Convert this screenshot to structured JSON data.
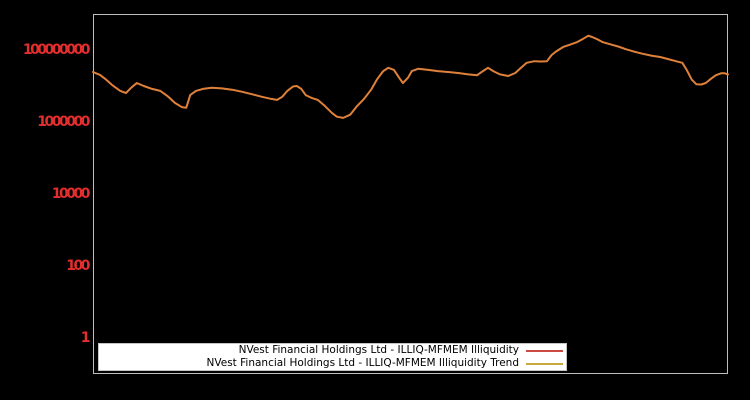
{
  "window": {
    "background_color": "#000000"
  },
  "axes": {
    "border_color": "#bebebe",
    "tick_label_color": "#e42d2d"
  },
  "legend": {
    "background_color": "#ffffff",
    "border_color": "#c4c4c4",
    "text_color": "#000000"
  },
  "chart_data": {
    "type": "line",
    "title": "",
    "xlabel": "",
    "ylabel": "",
    "yscale": "log",
    "ylim": [
      0.1,
      1000000000
    ],
    "yticks": [
      1,
      100,
      10000,
      1000000,
      100000000
    ],
    "ytick_labels": [
      "1",
      "100",
      "10000",
      "1000000",
      "100000000"
    ],
    "xtick_labels": [],
    "grid": false,
    "legend_position": "lower-left-inside",
    "plotted_line_color": "#e0813a",
    "series": [
      {
        "name": "NVest Financial Holdings Ltd - ILLIQ-MFMEM Illiquidity",
        "legend_color": "#cd4a42"
      },
      {
        "name": "NVest Financial Holdings Ltd - ILLIQ-MFMEM Illiquidity Trend",
        "legend_color": "#c9a83e",
        "note": "overlaps the illiquidity series almost exactly; combined lines appear orange"
      }
    ],
    "x": [
      0.0,
      0.011,
      0.019,
      0.03,
      0.043,
      0.052,
      0.06,
      0.069,
      0.08,
      0.093,
      0.106,
      0.117,
      0.129,
      0.14,
      0.147,
      0.153,
      0.162,
      0.173,
      0.187,
      0.203,
      0.219,
      0.235,
      0.25,
      0.266,
      0.28,
      0.29,
      0.298,
      0.306,
      0.315,
      0.321,
      0.328,
      0.335,
      0.345,
      0.354,
      0.365,
      0.376,
      0.384,
      0.394,
      0.405,
      0.416,
      0.427,
      0.438,
      0.447,
      0.457,
      0.465,
      0.474,
      0.482,
      0.488,
      0.496,
      0.502,
      0.512,
      0.528,
      0.543,
      0.559,
      0.575,
      0.591,
      0.605,
      0.614,
      0.622,
      0.631,
      0.641,
      0.654,
      0.665,
      0.674,
      0.683,
      0.695,
      0.706,
      0.715,
      0.722,
      0.729,
      0.74,
      0.751,
      0.762,
      0.772,
      0.78,
      0.786,
      0.794,
      0.803,
      0.814,
      0.827,
      0.839,
      0.852,
      0.865,
      0.879,
      0.893,
      0.906,
      0.918,
      0.928,
      0.935,
      0.943,
      0.95,
      0.958,
      0.965,
      0.973,
      0.981,
      0.989,
      0.995,
      1.0
    ],
    "values": [
      24500000,
      20400000,
      15800000,
      10700000,
      7300000,
      6400000,
      8900000,
      12100000,
      10000000,
      8300000,
      7300000,
      5300000,
      3400000,
      2600000,
      2500000,
      5600000,
      7300000,
      8300000,
      8900000,
      8600000,
      7900000,
      6900000,
      5900000,
      5000000,
      4400000,
      4100000,
      5000000,
      7300000,
      9700000,
      10000000,
      8300000,
      5600000,
      4600000,
      4100000,
      2800000,
      1800000,
      1400000,
      1300000,
      1600000,
      2800000,
      4400000,
      7900000,
      15000000,
      26000000,
      32000000,
      28000000,
      17000000,
      12100000,
      17000000,
      26000000,
      30000000,
      28000000,
      26000000,
      24500000,
      23000000,
      21000000,
      20000000,
      26000000,
      32000000,
      25500000,
      21000000,
      19000000,
      23000000,
      32000000,
      44000000,
      49000000,
      48000000,
      49000000,
      72000000,
      90000000,
      120000000,
      140000000,
      165000000,
      205000000,
      250000000,
      230000000,
      200000000,
      165000000,
      145000000,
      125000000,
      105000000,
      90000000,
      79000000,
      70000000,
      64000000,
      56000000,
      49000000,
      44000000,
      28000000,
      15000000,
      11200000,
      11000000,
      12100000,
      15800000,
      20000000,
      22500000,
      22500000,
      21000000
    ]
  }
}
